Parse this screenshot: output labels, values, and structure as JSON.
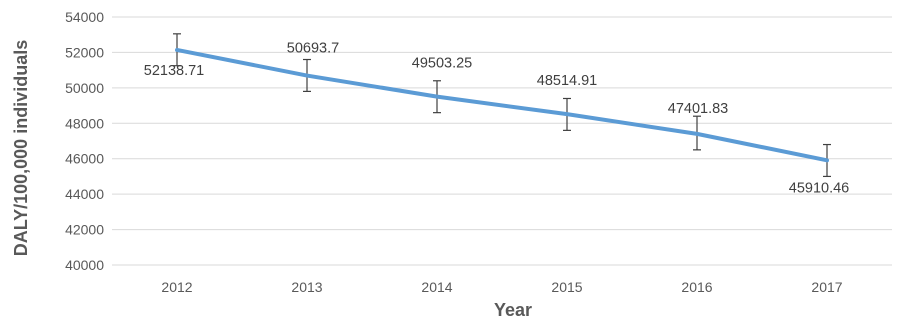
{
  "chart_data": {
    "type": "line",
    "title": "",
    "xlabel": "Year",
    "ylabel": "DALY/100,000 individuals",
    "categories": [
      "2012",
      "2013",
      "2014",
      "2015",
      "2016",
      "2017"
    ],
    "series": [
      {
        "values": [
          52138.71,
          50693.7,
          49503.25,
          48514.91,
          47401.83,
          45910.46
        ],
        "labels": [
          "52138.71",
          "50693.7",
          "49503.25",
          "48514.91",
          "47401.83",
          "45910.46"
        ],
        "error_low": [
          51250,
          49800,
          48600,
          47600,
          46500,
          45000
        ],
        "error_high": [
          53050,
          51600,
          50400,
          49400,
          48400,
          46800
        ],
        "color": "#5b9bd5"
      }
    ],
    "ylim": [
      40000,
      54000
    ],
    "yticks": [
      "40000",
      "42000",
      "44000",
      "46000",
      "48000",
      "50000",
      "52000",
      "54000"
    ],
    "grid": true,
    "gridColor": "#d9d9d9",
    "errorBarColor": "#404040"
  }
}
